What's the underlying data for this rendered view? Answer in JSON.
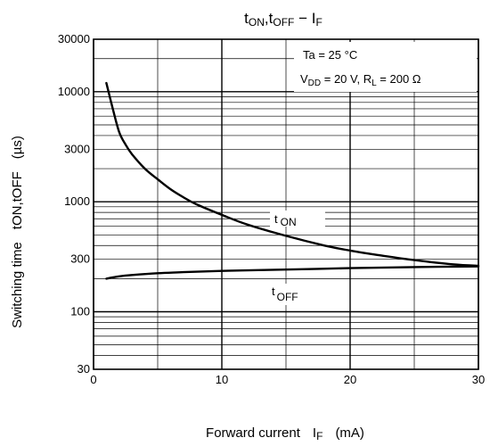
{
  "chart_data": {
    "type": "line",
    "title": "tON,tOFF − IF",
    "title_parts": {
      "a": "t",
      "a_sub": "ON",
      "b": ",t",
      "b_sub": "OFF",
      "dash": " − I",
      "c_sub": "F"
    },
    "xlabel": "Forward current",
    "xlabel_symbol": "I",
    "xlabel_symbol_sub": "F",
    "xlabel_unit": "(mA)",
    "ylabel": "Switching time",
    "ylabel_symbol": "tON,tOFF",
    "ylabel_unit": "(µs)",
    "x_scale": "linear",
    "y_scale": "log",
    "xlim": [
      0,
      30
    ],
    "ylim": [
      30,
      30000
    ],
    "x_ticks": [
      0,
      10,
      20,
      30
    ],
    "y_ticks": [
      30,
      100,
      300,
      1000,
      3000,
      10000,
      30000
    ],
    "grid": true,
    "annotations": {
      "condition1": "Ta = 25 °C",
      "condition2_a": "V",
      "condition2_a_sub": "DD",
      "condition2_b": " = 20 V, R",
      "condition2_b_sub": "L",
      "condition2_c": " = 200 Ω"
    },
    "series": [
      {
        "name": "tON",
        "label_main": "t",
        "label_sub": "ON",
        "x": [
          1,
          1.5,
          2,
          2.5,
          3,
          4,
          5,
          6,
          7,
          8,
          10,
          12,
          15,
          18,
          20,
          22,
          25,
          28,
          30
        ],
        "y": [
          12000,
          7000,
          4300,
          3300,
          2700,
          2000,
          1600,
          1300,
          1100,
          950,
          760,
          620,
          490,
          400,
          360,
          330,
          295,
          270,
          262
        ]
      },
      {
        "name": "tOFF",
        "label_main": "t",
        "label_sub": "OFF",
        "x": [
          1,
          2,
          3,
          5,
          7,
          10,
          15,
          20,
          25,
          30
        ],
        "y": [
          200,
          210,
          216,
          224,
          229,
          235,
          242,
          249,
          255,
          258
        ]
      }
    ]
  }
}
